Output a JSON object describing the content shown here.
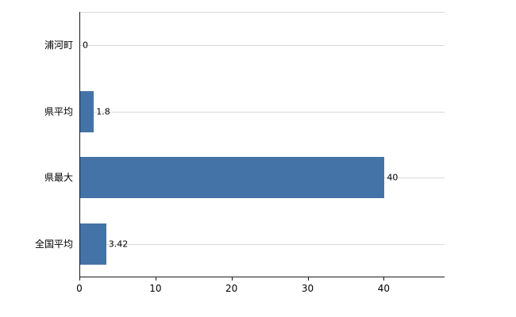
{
  "chart_data": {
    "type": "bar",
    "orientation": "horizontal",
    "title": "",
    "xlabel": "",
    "ylabel": "",
    "categories": [
      "浦河町",
      "県平均",
      "県最大",
      "全国平均"
    ],
    "values": [
      0,
      1.8,
      40,
      3.42
    ],
    "value_labels": [
      "0",
      "1.8",
      "40",
      "3.42"
    ],
    "xlim": [
      0,
      48
    ],
    "x_ticks": [
      0,
      10,
      20,
      30,
      40
    ],
    "x_tick_labels": [
      "0",
      "10",
      "20",
      "30",
      "40"
    ],
    "grid": "horizontal lines at top and through each category row",
    "legend": "none",
    "colors": {
      "bar": "#4473a7",
      "axis": "#1a1a1a",
      "gridline": "#d9d9d9",
      "background": "#ffffff",
      "text": "#000000"
    }
  }
}
